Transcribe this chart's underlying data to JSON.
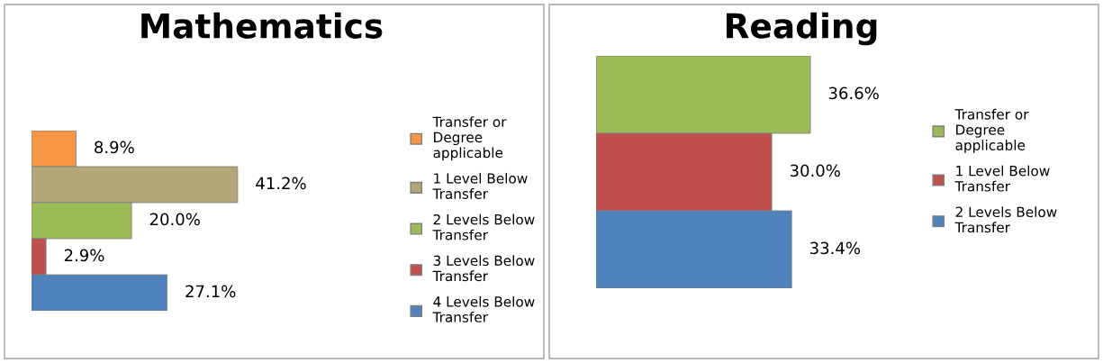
{
  "chart_data": [
    {
      "type": "bar",
      "orientation": "horizontal",
      "title": "Mathematics",
      "categories": [
        null
      ],
      "legend": "right",
      "tick_labels": false,
      "series": [
        {
          "name": "Transfer or Degree applicable",
          "color": "#f79646",
          "values": [
            8.9
          ],
          "value_labels": [
            "8.9%"
          ]
        },
        {
          "name": "1 Level Below Transfer",
          "color": "#b3a77a",
          "values": [
            41.2
          ],
          "value_labels": [
            "41.2%"
          ]
        },
        {
          "name": "2 Levels Below Transfer",
          "color": "#9bbb59",
          "values": [
            20.0
          ],
          "value_labels": [
            "20.0%"
          ]
        },
        {
          "name": "3 Levels Below Transfer",
          "color": "#c0504d",
          "values": [
            2.9
          ],
          "value_labels": [
            "2.9%"
          ]
        },
        {
          "name": "4 Levels Below Transfer",
          "color": "#4f81bd",
          "values": [
            27.1
          ],
          "value_labels": [
            "27.1%"
          ]
        }
      ]
    },
    {
      "type": "bar",
      "orientation": "horizontal",
      "title": "Reading",
      "categories": [
        null
      ],
      "legend": "right",
      "tick_labels": false,
      "series": [
        {
          "name": "Transfer or Degree applicable",
          "color": "#9bbb59",
          "values": [
            36.6
          ],
          "value_labels": [
            "36.6%"
          ]
        },
        {
          "name": "1 Level Below Transfer",
          "color": "#c0504d",
          "values": [
            30.0
          ],
          "value_labels": [
            "30.0%"
          ]
        },
        {
          "name": "2 Levels Below Transfer",
          "color": "#4f81bd",
          "values": [
            33.4
          ],
          "value_labels": [
            "33.4%"
          ]
        }
      ]
    }
  ]
}
